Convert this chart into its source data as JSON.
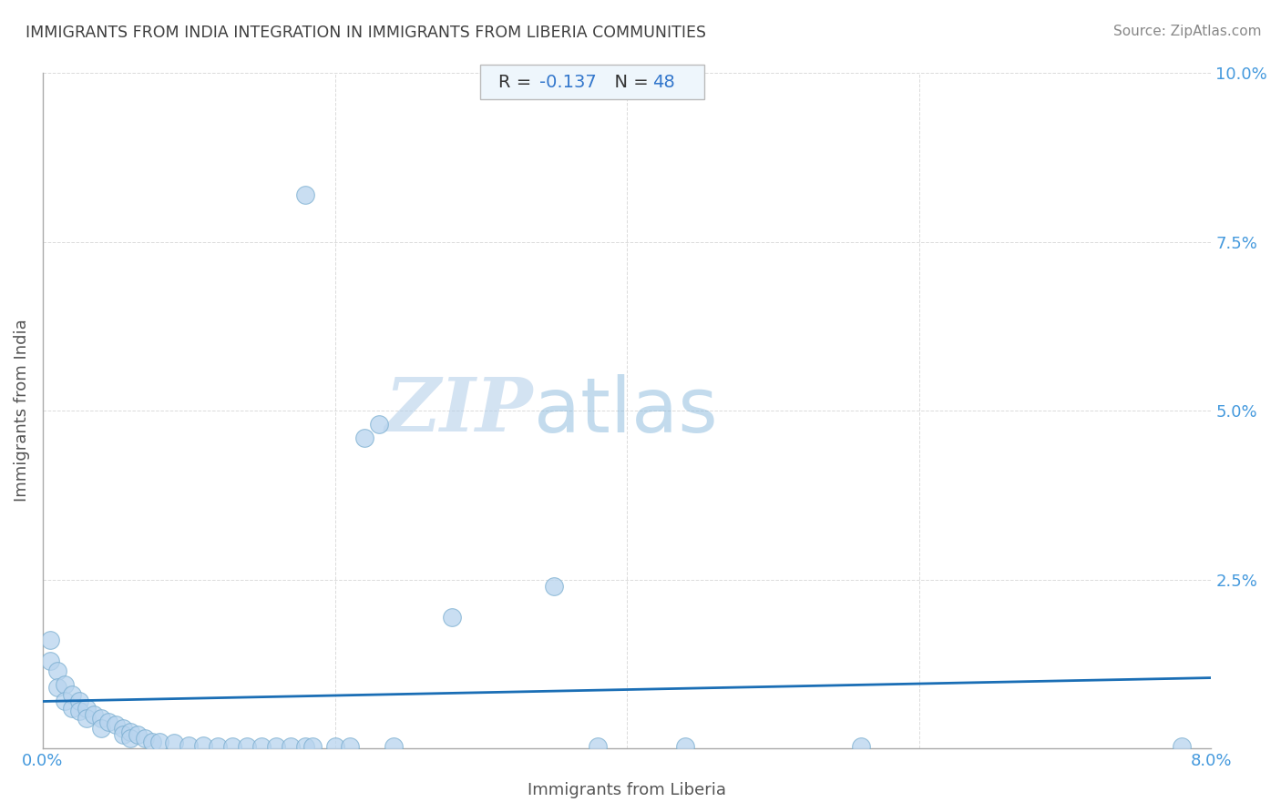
{
  "title": "IMMIGRANTS FROM INDIA INTEGRATION IN IMMIGRANTS FROM LIBERIA COMMUNITIES",
  "source": "Source: ZipAtlas.com",
  "xlabel": "Immigrants from Liberia",
  "ylabel": "Immigrants from India",
  "R": -0.137,
  "N": 48,
  "xlim": [
    0.0,
    0.08
  ],
  "ylim": [
    0.0,
    0.1
  ],
  "xtick_positions": [
    0.0,
    0.02,
    0.04,
    0.06,
    0.08
  ],
  "xtick_labels": [
    "0.0%",
    "",
    "",
    "",
    "8.0%"
  ],
  "ytick_positions": [
    0.0,
    0.025,
    0.05,
    0.075,
    0.1
  ],
  "ytick_labels": [
    "",
    "2.5%",
    "5.0%",
    "7.5%",
    "10.0%"
  ],
  "scatter_color": "#b8d4ee",
  "scatter_edge_color": "#7aaed0",
  "line_color": "#1a6eb5",
  "watermark_zip": "ZIP",
  "watermark_atlas": "atlas",
  "points": [
    [
      0.0005,
      0.016
    ],
    [
      0.0005,
      0.013
    ],
    [
      0.001,
      0.0115
    ],
    [
      0.001,
      0.009
    ],
    [
      0.0015,
      0.0095
    ],
    [
      0.0015,
      0.007
    ],
    [
      0.002,
      0.008
    ],
    [
      0.002,
      0.006
    ],
    [
      0.0025,
      0.007
    ],
    [
      0.0025,
      0.0055
    ],
    [
      0.003,
      0.006
    ],
    [
      0.003,
      0.0045
    ],
    [
      0.0035,
      0.005
    ],
    [
      0.004,
      0.0045
    ],
    [
      0.004,
      0.003
    ],
    [
      0.0045,
      0.004
    ],
    [
      0.005,
      0.0035
    ],
    [
      0.0055,
      0.003
    ],
    [
      0.0055,
      0.002
    ],
    [
      0.006,
      0.0025
    ],
    [
      0.006,
      0.0015
    ],
    [
      0.0065,
      0.002
    ],
    [
      0.007,
      0.0015
    ],
    [
      0.0075,
      0.001
    ],
    [
      0.008,
      0.001
    ],
    [
      0.009,
      0.0008
    ],
    [
      0.01,
      0.0005
    ],
    [
      0.011,
      0.0005
    ],
    [
      0.012,
      0.0003
    ],
    [
      0.013,
      0.0003
    ],
    [
      0.014,
      0.0003
    ],
    [
      0.015,
      0.0003
    ],
    [
      0.016,
      0.0003
    ],
    [
      0.017,
      0.0003
    ],
    [
      0.018,
      0.0003
    ],
    [
      0.0185,
      0.0003
    ],
    [
      0.02,
      0.0003
    ],
    [
      0.021,
      0.0003
    ],
    [
      0.022,
      0.046
    ],
    [
      0.023,
      0.048
    ],
    [
      0.024,
      0.0003
    ],
    [
      0.018,
      0.082
    ],
    [
      0.028,
      0.0195
    ],
    [
      0.035,
      0.024
    ],
    [
      0.038,
      0.0003
    ],
    [
      0.044,
      0.0003
    ],
    [
      0.056,
      0.0003
    ],
    [
      0.078,
      0.0003
    ]
  ],
  "background_color": "#ffffff",
  "grid_color": "#cccccc",
  "title_color": "#404040",
  "source_color": "#888888",
  "axis_label_color": "#555555",
  "tick_color": "#4499dd",
  "box_fill": "#eef6fc",
  "box_edge": "#bbbbbb"
}
